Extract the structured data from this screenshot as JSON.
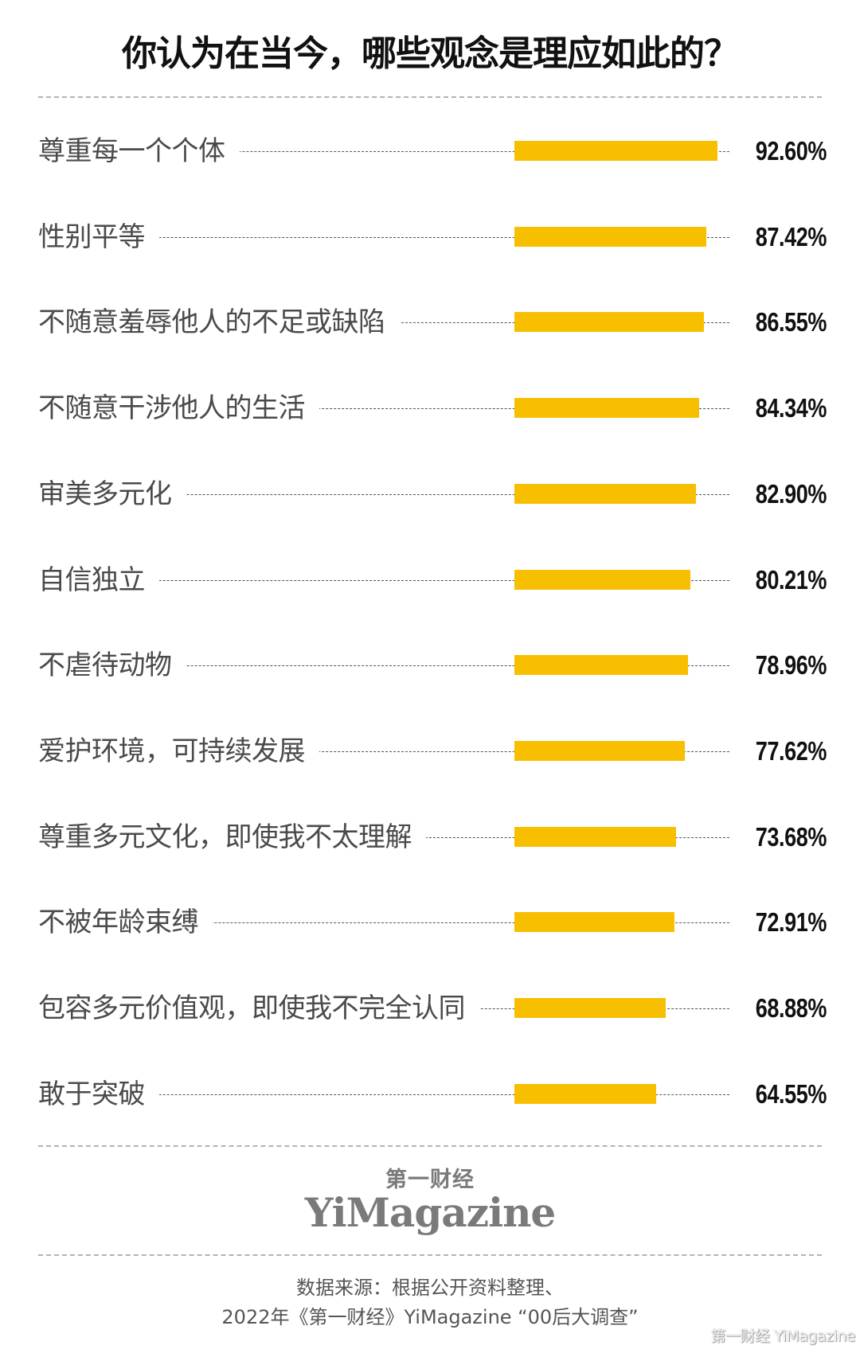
{
  "title": "你认为在当今，哪些观念是理应如此的？",
  "colors": {
    "bar": "#f8bf00",
    "title": "#111111",
    "label": "#4a4a4a",
    "brand": "#7a7a7a"
  },
  "rows": [
    {
      "label": "尊重每一个个体",
      "value": "92.60%"
    },
    {
      "label": "性别平等",
      "value": "87.42%"
    },
    {
      "label": "不随意羞辱他人的不足或缺陷",
      "value": "86.55%"
    },
    {
      "label": "不随意干涉他人的生活",
      "value": "84.34%"
    },
    {
      "label": "审美多元化",
      "value": "82.90%"
    },
    {
      "label": "自信独立",
      "value": "80.21%"
    },
    {
      "label": "不虐待动物",
      "value": "78.96%"
    },
    {
      "label": "爱护环境，可持续发展",
      "value": "77.62%"
    },
    {
      "label": "尊重多元文化，即使我不太理解",
      "value": "73.68%"
    },
    {
      "label": "不被年龄束缚",
      "value": "72.91%"
    },
    {
      "label": "包容多元价值观，即使我不完全认同",
      "value": "68.88%"
    },
    {
      "label": "敢于突破",
      "value": "64.55%"
    }
  ],
  "brand": {
    "cn": "第一财经",
    "en": "YiMagazine"
  },
  "source": {
    "line1": "数据来源：根据公开资料整理、",
    "line2": "2022年《第一财经》YiMagazine “00后大调查”"
  },
  "watermark": "第一财经 YiMagazine",
  "chart_data": {
    "type": "bar",
    "orientation": "horizontal",
    "title": "你认为在当今，哪些观念是理应如此的？",
    "categories": [
      "尊重每一个个体",
      "性别平等",
      "不随意羞辱他人的不足或缺陷",
      "不随意干涉他人的生活",
      "审美多元化",
      "自信独立",
      "不虐待动物",
      "爱护环境，可持续发展",
      "尊重多元文化，即使我不太理解",
      "不被年龄束缚",
      "包容多元价值观，即使我不完全认同",
      "敢于突破"
    ],
    "values": [
      92.6,
      87.42,
      86.55,
      84.34,
      82.9,
      80.21,
      78.96,
      77.62,
      73.68,
      72.91,
      68.88,
      64.55
    ],
    "unit": "%",
    "xlabel": "",
    "ylabel": "",
    "xlim": [
      0,
      100
    ],
    "grid": false,
    "legend": null,
    "data_labels": true,
    "source": "数据来源：根据公开资料整理、2022年《第一财经》YiMagazine “00后大调查”"
  }
}
